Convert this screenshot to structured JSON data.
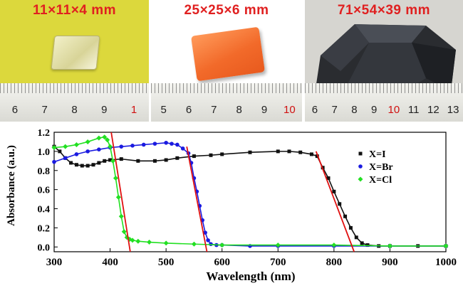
{
  "photos": [
    {
      "label": "11×11×4  mm",
      "ruler_numbers": [
        "6",
        "7",
        "8",
        "9",
        "1"
      ],
      "ruler_number_colors": [
        "#222",
        "#222",
        "#222",
        "#222",
        "#d01010"
      ]
    },
    {
      "label": "25×25×6  mm",
      "ruler_numbers": [
        "5",
        "6",
        "7",
        "8",
        "9",
        "10"
      ],
      "ruler_number_colors": [
        "#222",
        "#222",
        "#222",
        "#222",
        "#222",
        "#d01010"
      ]
    },
    {
      "label": "71×54×39 mm",
      "ruler_numbers": [
        "6",
        "7",
        "8",
        "9",
        "10",
        "11",
        "12",
        "13"
      ],
      "ruler_number_colors": [
        "#222",
        "#222",
        "#222",
        "#222",
        "#d01010",
        "#222",
        "#222",
        "#222"
      ]
    }
  ],
  "chart_data": {
    "type": "scatter",
    "xlabel": "Wavelength (nm)",
    "ylabel": "Absorbance (a.u.)",
    "xlim": [
      300,
      1000
    ],
    "ylim": [
      -0.05,
      1.2
    ],
    "x_ticks": [
      300,
      400,
      500,
      600,
      700,
      800,
      900,
      1000
    ],
    "y_ticks": [
      0.0,
      0.2,
      0.4,
      0.6,
      0.8,
      1.0,
      1.2
    ],
    "y_tick_labels": [
      "0.0",
      "0.2",
      "0.4",
      "0.6",
      "0.8",
      "1.0",
      "1.2"
    ],
    "legend_position": "right",
    "series": [
      {
        "name": "X=I",
        "color": "#111111",
        "marker": "square",
        "x": [
          300,
          310,
          320,
          330,
          340,
          350,
          360,
          370,
          380,
          390,
          400,
          420,
          450,
          480,
          500,
          520,
          550,
          580,
          600,
          650,
          700,
          720,
          740,
          760,
          770,
          780,
          790,
          800,
          810,
          820,
          830,
          840,
          850,
          860,
          880,
          900,
          950,
          1000
        ],
        "y": [
          1.05,
          1.0,
          0.93,
          0.88,
          0.86,
          0.85,
          0.85,
          0.86,
          0.88,
          0.9,
          0.91,
          0.92,
          0.9,
          0.9,
          0.91,
          0.93,
          0.95,
          0.96,
          0.97,
          0.99,
          1.0,
          1.0,
          0.99,
          0.97,
          0.95,
          0.83,
          0.72,
          0.58,
          0.45,
          0.32,
          0.2,
          0.1,
          0.04,
          0.02,
          0.01,
          0.01,
          0.01,
          0.01
        ]
      },
      {
        "name": "X=Br",
        "color": "#1a1ae0",
        "marker": "circle",
        "x": [
          300,
          320,
          340,
          360,
          380,
          400,
          420,
          440,
          460,
          480,
          500,
          510,
          520,
          530,
          540,
          545,
          550,
          555,
          560,
          565,
          570,
          575,
          580,
          590,
          600,
          650,
          700,
          800,
          900,
          1000
        ],
        "y": [
          0.89,
          0.93,
          0.97,
          1.0,
          1.02,
          1.04,
          1.05,
          1.06,
          1.07,
          1.08,
          1.09,
          1.08,
          1.07,
          1.03,
          0.98,
          0.88,
          0.72,
          0.58,
          0.43,
          0.28,
          0.15,
          0.07,
          0.03,
          0.02,
          0.02,
          0.01,
          0.01,
          0.01,
          0.01,
          0.01
        ]
      },
      {
        "name": "X=Cl",
        "color": "#22e022",
        "marker": "diamond",
        "x": [
          300,
          320,
          340,
          360,
          380,
          390,
          395,
          400,
          405,
          410,
          415,
          420,
          425,
          430,
          435,
          440,
          450,
          470,
          500,
          550,
          600,
          700,
          800,
          900,
          1000
        ],
        "y": [
          1.04,
          1.05,
          1.07,
          1.1,
          1.14,
          1.15,
          1.12,
          1.05,
          0.9,
          0.72,
          0.52,
          0.32,
          0.16,
          0.1,
          0.08,
          0.07,
          0.06,
          0.05,
          0.04,
          0.03,
          0.02,
          0.02,
          0.02,
          0.01,
          0.01
        ]
      }
    ],
    "fit_lines": [
      {
        "color": "#e01010",
        "x": [
          402,
          436
        ],
        "y": [
          1.2,
          -0.05
        ]
      },
      {
        "color": "#e01010",
        "x": [
          537,
          573
        ],
        "y": [
          1.05,
          -0.05
        ]
      },
      {
        "color": "#e01010",
        "x": [
          768,
          836
        ],
        "y": [
          1.0,
          -0.05
        ]
      }
    ]
  }
}
